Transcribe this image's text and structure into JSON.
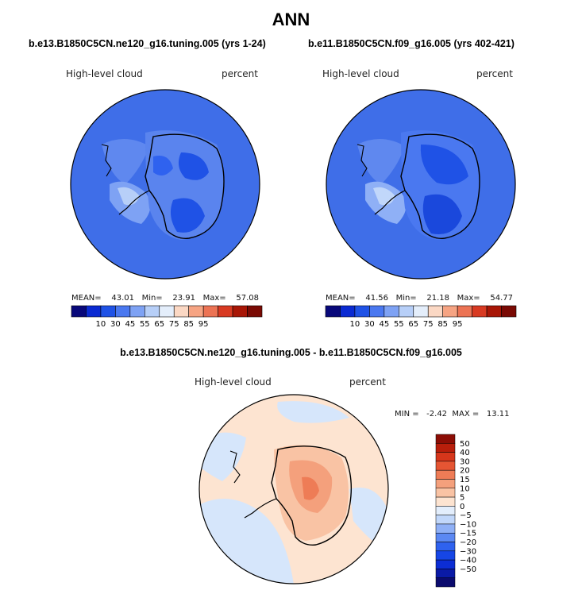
{
  "title": "ANN",
  "diff_title": "b.e13.B1850C5CN.ne120_g16.tuning.005 - b.e11.B1850C5CN.f09_g16.005",
  "colors": {
    "levels10": [
      "#08087a",
      "#0a2ad2",
      "#1f52e6",
      "#4a78f0",
      "#7ea2f4",
      "#b7cff8",
      "#e4eefb",
      "#fbd8c4",
      "#f6a483",
      "#ec7354",
      "#d83a22",
      "#a81606",
      "#7a0a04"
    ],
    "levels_diff": [
      "#0b0b6e",
      "#0a1aa6",
      "#0c2dd4",
      "#1646e6",
      "#2f62ef",
      "#5b88f3",
      "#8fb0f6",
      "#c1d7fa",
      "#e3eefc",
      "#fde4d1",
      "#f9c3a4",
      "#f4a07c",
      "#ee7c56",
      "#e55533",
      "#d6361b",
      "#b81e0b",
      "#8c0d05"
    ]
  },
  "chart_data": [
    {
      "type": "heatmap",
      "title": "b.e13.B1850C5CN.ne120_g16.tuning.005 (yrs 1-24)",
      "variable": "High-level cloud",
      "units": "percent",
      "stats": {
        "mean_label": "MEAN=",
        "mean": "43.01",
        "min_label": "Min=",
        "min": "23.91",
        "max_label": "Max=",
        "max": "57.08"
      },
      "colorbar_ticks": [
        "10",
        "30",
        "45",
        "55",
        "65",
        "75",
        "85",
        "95"
      ],
      "projection": "south polar stereographic"
    },
    {
      "type": "heatmap",
      "title": "b.e11.B1850C5CN.f09_g16.005 (yrs 402-421)",
      "variable": "High-level cloud",
      "units": "percent",
      "stats": {
        "mean_label": "MEAN=",
        "mean": "41.56",
        "min_label": "Min=",
        "min": "21.18",
        "max_label": "Max=",
        "max": "54.77"
      },
      "colorbar_ticks": [
        "10",
        "30",
        "45",
        "55",
        "65",
        "75",
        "85",
        "95"
      ],
      "projection": "south polar stereographic"
    },
    {
      "type": "heatmap",
      "title": "b.e13.B1850C5CN.ne120_g16.tuning.005 - b.e11.B1850C5CN.f09_g16.005",
      "variable": "High-level cloud",
      "units": "percent",
      "stats": {
        "min_label": "MIN =",
        "min": "-2.42",
        "max_label": "MAX =",
        "max": "13.11"
      },
      "colorbar_ticks": [
        "50",
        "40",
        "30",
        "20",
        "15",
        "10",
        "5",
        "0",
        "−5",
        "−10",
        "−15",
        "−20",
        "−30",
        "−40",
        "−50"
      ],
      "projection": "south polar stereographic"
    }
  ]
}
